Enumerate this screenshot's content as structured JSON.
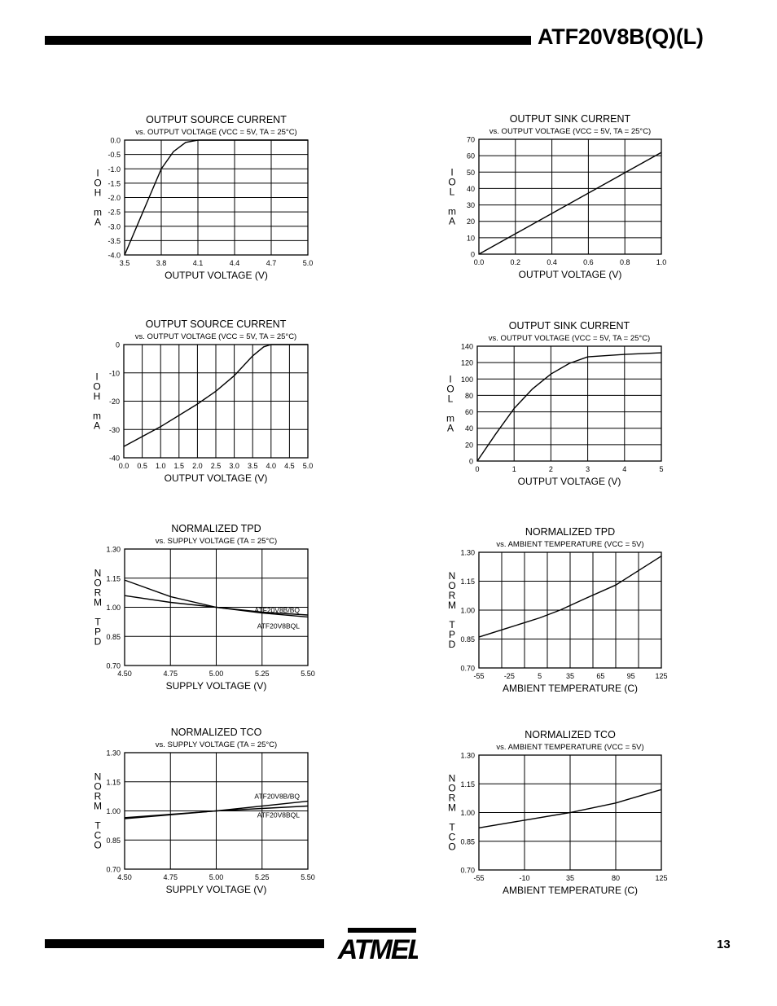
{
  "header": {
    "title": "ATF20V8B(Q)(L)"
  },
  "footer": {
    "page_number": "13",
    "logo_text": "ATMEL"
  },
  "chart_data": [
    {
      "type": "line",
      "title": "OUTPUT SOURCE CURRENT",
      "subtitle": "vs. OUTPUT VOLTAGE (VCC = 5V, TA = 25°C)",
      "xlabel": "OUTPUT VOLTAGE (V)",
      "ylabel": [
        "I",
        "O",
        "H",
        "",
        "m",
        "A"
      ],
      "xlim": [
        3.5,
        5.0
      ],
      "ylim": [
        -4.0,
        0.0
      ],
      "x_ticks": [
        3.5,
        3.8,
        4.1,
        4.4,
        4.7,
        5.0
      ],
      "x_tick_labels": [
        "3.5",
        "3.8",
        "4.1",
        "4.4",
        "4.7",
        "5.0"
      ],
      "y_ticks": [
        0.0,
        -0.5,
        -1.0,
        -1.5,
        -2.0,
        -2.5,
        -3.0,
        -3.5,
        -4.0
      ],
      "y_tick_labels": [
        "0.0",
        "-0.5",
        "-1.0",
        "-1.5",
        "-2.0",
        "-2.5",
        "-3.0",
        "-3.5",
        "-4.0"
      ],
      "series": [
        {
          "name": "IOH",
          "x": [
            3.5,
            3.6,
            3.7,
            3.8,
            3.9,
            4.0,
            4.1,
            5.0
          ],
          "y": [
            -4.0,
            -3.0,
            -2.0,
            -1.0,
            -0.4,
            -0.08,
            0.0,
            0.0
          ]
        }
      ]
    },
    {
      "type": "line",
      "title": "OUTPUT SINK CURRENT",
      "subtitle": "vs. OUTPUT VOLTAGE (VCC = 5V, TA = 25°C)",
      "xlabel": "OUTPUT VOLTAGE (V)",
      "ylabel": [
        "I",
        "O",
        "L",
        "",
        "m",
        "A"
      ],
      "xlim": [
        0.0,
        1.0
      ],
      "ylim": [
        0,
        70
      ],
      "x_ticks": [
        0.0,
        0.2,
        0.4,
        0.6,
        0.8,
        1.0
      ],
      "x_tick_labels": [
        "0.0",
        "0.2",
        "0.4",
        "0.6",
        "0.8",
        "1.0"
      ],
      "y_ticks": [
        70,
        60,
        50,
        40,
        30,
        20,
        10,
        0
      ],
      "y_tick_labels": [
        "70",
        "60",
        "50",
        "40",
        "30",
        "20",
        "10",
        "0"
      ],
      "series": [
        {
          "name": "IOL",
          "x": [
            0.0,
            1.0
          ],
          "y": [
            0,
            62
          ]
        }
      ]
    },
    {
      "type": "line",
      "title": "OUTPUT SOURCE CURRENT",
      "subtitle": "vs. OUTPUT VOLTAGE (VCC = 5V, TA = 25°C)",
      "xlabel": "OUTPUT VOLTAGE (V)",
      "ylabel": [
        "I",
        "O",
        "H",
        "",
        "m",
        "A"
      ],
      "xlim": [
        0.0,
        5.0
      ],
      "ylim": [
        -40,
        0
      ],
      "x_ticks": [
        0.0,
        0.5,
        1.0,
        1.5,
        2.0,
        2.5,
        3.0,
        3.5,
        4.0,
        4.5,
        5.0
      ],
      "x_tick_labels": [
        "0.0",
        "0.5",
        "1.0",
        "1.5",
        "2.0",
        "2.5",
        "3.0",
        "3.5",
        "4.0",
        "4.5",
        "5.0"
      ],
      "y_ticks": [
        0,
        -10,
        -20,
        -30,
        -40
      ],
      "y_tick_labels": [
        "0",
        "-10",
        "-20",
        "-30",
        "-40"
      ],
      "series": [
        {
          "name": "IOH",
          "x": [
            0.0,
            1.0,
            2.0,
            2.5,
            3.0,
            3.5,
            3.8,
            4.0,
            5.0
          ],
          "y": [
            -36,
            -29,
            -21,
            -16.5,
            -11,
            -4,
            -0.8,
            0,
            0
          ]
        }
      ]
    },
    {
      "type": "line",
      "title": "OUTPUT SINK CURRENT",
      "subtitle": "vs. OUTPUT VOLTAGE (VCC = 5V, TA = 25°C)",
      "xlabel": "OUTPUT VOLTAGE (V)",
      "ylabel": [
        "I",
        "O",
        "L",
        "",
        "m",
        "A"
      ],
      "xlim": [
        0,
        5
      ],
      "ylim": [
        0,
        140
      ],
      "x_ticks": [
        0,
        1,
        2,
        3,
        4,
        5
      ],
      "x_tick_labels": [
        "0",
        "1",
        "2",
        "3",
        "4",
        "5"
      ],
      "y_ticks": [
        140,
        120,
        100,
        80,
        60,
        40,
        20,
        0
      ],
      "y_tick_labels": [
        "140",
        "120",
        "100",
        "80",
        "60",
        "40",
        "20",
        "0"
      ],
      "series": [
        {
          "name": "IOL",
          "x": [
            0,
            0.5,
            1.0,
            1.5,
            2.0,
            2.5,
            3.0,
            4.0,
            5.0
          ],
          "y": [
            0,
            33,
            64,
            88,
            106,
            119,
            127,
            130,
            132
          ]
        }
      ]
    },
    {
      "type": "line",
      "title": "NORMALIZED TPD",
      "subtitle": "vs. SUPPLY VOLTAGE (TA = 25°C)",
      "xlabel": "SUPPLY VOLTAGE (V)",
      "ylabel": [
        "N",
        "O",
        "R",
        "M",
        "",
        "T",
        "P",
        "D"
      ],
      "xlim": [
        4.5,
        5.5
      ],
      "ylim": [
        0.7,
        1.3
      ],
      "x_ticks": [
        4.5,
        4.75,
        5.0,
        5.25,
        5.5
      ],
      "x_tick_labels": [
        "4.50",
        "4.75",
        "5.00",
        "5.25",
        "5.50"
      ],
      "y_ticks": [
        1.3,
        1.15,
        1.0,
        0.85,
        0.7
      ],
      "y_tick_labels": [
        "1.30",
        "1.15",
        "1.00",
        "0.85",
        "0.70"
      ],
      "series": [
        {
          "name": "ATF20V8B/BQ",
          "x": [
            4.5,
            4.75,
            5.0,
            5.25,
            5.5
          ],
          "y": [
            1.14,
            1.055,
            1.0,
            0.97,
            0.95
          ]
        },
        {
          "name": "ATF20V8BQL",
          "x": [
            4.5,
            4.75,
            5.0,
            5.25,
            5.5
          ],
          "y": [
            1.06,
            1.025,
            1.0,
            0.975,
            0.96
          ]
        }
      ],
      "annotations": [
        "ATF20V8B/BQ",
        "ATF20V8BQL"
      ]
    },
    {
      "type": "line",
      "title": "NORMALIZED TPD",
      "subtitle": "vs. AMBIENT TEMPERATURE (VCC = 5V)",
      "xlabel": "AMBIENT TEMPERATURE (C)",
      "ylabel": [
        "N",
        "O",
        "R",
        "M",
        "",
        "T",
        "P",
        "D"
      ],
      "xlim": [
        -55,
        125
      ],
      "ylim": [
        0.7,
        1.3
      ],
      "x_ticks": [
        -55,
        -25,
        5,
        35,
        65,
        95,
        125
      ],
      "x_tick_labels": [
        "-55",
        "-25",
        "5",
        "35",
        "65",
        "95",
        "125"
      ],
      "y_ticks": [
        1.3,
        1.15,
        1.0,
        0.85,
        0.7
      ],
      "y_tick_labels": [
        "1.30",
        "1.15",
        "1.00",
        "0.85",
        "0.70"
      ],
      "series": [
        {
          "name": "TPD",
          "x": [
            -55,
            -25,
            5,
            25,
            50,
            80,
            125
          ],
          "y": [
            0.86,
            0.91,
            0.96,
            1.0,
            1.06,
            1.13,
            1.28
          ]
        }
      ]
    },
    {
      "type": "line",
      "title": "NORMALIZED TCO",
      "subtitle": "vs. SUPPLY VOLTAGE (TA = 25°C)",
      "xlabel": "SUPPLY VOLTAGE (V)",
      "ylabel": [
        "N",
        "O",
        "R",
        "M",
        "",
        "T",
        "C",
        "O"
      ],
      "xlim": [
        4.5,
        5.5
      ],
      "ylim": [
        0.7,
        1.3
      ],
      "x_ticks": [
        4.5,
        4.75,
        5.0,
        5.25,
        5.5
      ],
      "x_tick_labels": [
        "4.50",
        "4.75",
        "5.00",
        "5.25",
        "5.50"
      ],
      "y_ticks": [
        1.3,
        1.15,
        1.0,
        0.85,
        0.7
      ],
      "y_tick_labels": [
        "1.30",
        "1.15",
        "1.00",
        "0.85",
        "0.70"
      ],
      "series": [
        {
          "name": "ATF20V8B/BQ",
          "x": [
            4.5,
            5.0,
            5.5
          ],
          "y": [
            0.96,
            1.0,
            1.05
          ]
        },
        {
          "name": "ATF20V8BQL",
          "x": [
            4.5,
            5.0,
            5.5
          ],
          "y": [
            0.965,
            1.0,
            1.025
          ]
        }
      ],
      "annotations": [
        "ATF20V8B/BQ",
        "ATF20V8BQL"
      ]
    },
    {
      "type": "line",
      "title": "NORMALIZED TCO",
      "subtitle": "vs. AMBIENT TEMPERATURE (VCC = 5V)",
      "xlabel": "AMBIENT TEMPERATURE (C)",
      "ylabel": [
        "N",
        "O",
        "R",
        "M",
        "",
        "T",
        "C",
        "O"
      ],
      "xlim": [
        -55,
        125
      ],
      "ylim": [
        0.7,
        1.3
      ],
      "x_ticks": [
        -55,
        -10,
        35,
        80,
        125
      ],
      "x_tick_labels": [
        "-55",
        "-10",
        "35",
        "80",
        "125"
      ],
      "y_ticks": [
        1.3,
        1.15,
        1.0,
        0.85,
        0.7
      ],
      "y_tick_labels": [
        "1.30",
        "1.15",
        "1.00",
        "0.85",
        "0.70"
      ],
      "series": [
        {
          "name": "TCO",
          "x": [
            -55,
            -10,
            35,
            80,
            125
          ],
          "y": [
            0.92,
            0.96,
            1.0,
            1.05,
            1.12
          ]
        }
      ]
    }
  ]
}
